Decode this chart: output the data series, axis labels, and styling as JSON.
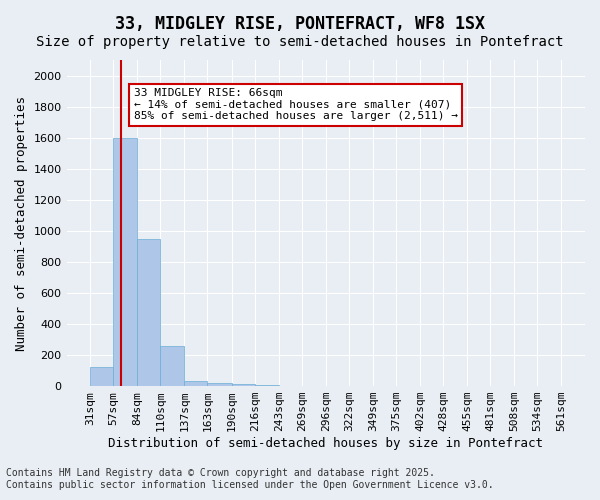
{
  "title": "33, MIDGLEY RISE, PONTEFRACT, WF8 1SX",
  "subtitle": "Size of property relative to semi-detached houses in Pontefract",
  "xlabel": "Distribution of semi-detached houses by size in Pontefract",
  "ylabel": "Number of semi-detached properties",
  "footer_line1": "Contains HM Land Registry data © Crown copyright and database right 2025.",
  "footer_line2": "Contains public sector information licensed under the Open Government Licence v3.0.",
  "annotation_line1": "33 MIDGLEY RISE: 66sqm",
  "annotation_line2": "← 14% of semi-detached houses are smaller (407)",
  "annotation_line3": "85% of semi-detached houses are larger (2,511) →",
  "property_size": 66,
  "bar_left_edges": [
    31,
    57,
    84,
    110,
    137,
    163,
    190,
    216,
    243,
    269,
    296,
    322,
    349,
    375,
    402,
    428,
    455,
    481,
    508,
    534
  ],
  "bar_widths": [
    26,
    27,
    26,
    27,
    26,
    27,
    26,
    27,
    26,
    27,
    26,
    27,
    26,
    26,
    27,
    27,
    26,
    27,
    26,
    27
  ],
  "bar_heights": [
    120,
    1600,
    950,
    260,
    35,
    20,
    12,
    5,
    2,
    1,
    0,
    0,
    0,
    0,
    0,
    0,
    0,
    0,
    0,
    0
  ],
  "bar_color": "#aec6e8",
  "bar_edge_color": "#6aaed6",
  "vline_color": "#cc0000",
  "vline_x": 66,
  "ylim": [
    0,
    2100
  ],
  "yticks": [
    0,
    200,
    400,
    600,
    800,
    1000,
    1200,
    1400,
    1600,
    1800,
    2000
  ],
  "tick_labels": [
    "31sqm",
    "57sqm",
    "84sqm",
    "110sqm",
    "137sqm",
    "163sqm",
    "190sqm",
    "216sqm",
    "243sqm",
    "269sqm",
    "296sqm",
    "322sqm",
    "349sqm",
    "375sqm",
    "402sqm",
    "428sqm",
    "455sqm",
    "481sqm",
    "508sqm",
    "534sqm",
    "561sqm"
  ],
  "background_color": "#e8eef4",
  "grid_color": "#ffffff",
  "title_fontsize": 12,
  "subtitle_fontsize": 10,
  "axis_label_fontsize": 9,
  "tick_fontsize": 8,
  "annotation_fontsize": 8,
  "footer_fontsize": 7
}
